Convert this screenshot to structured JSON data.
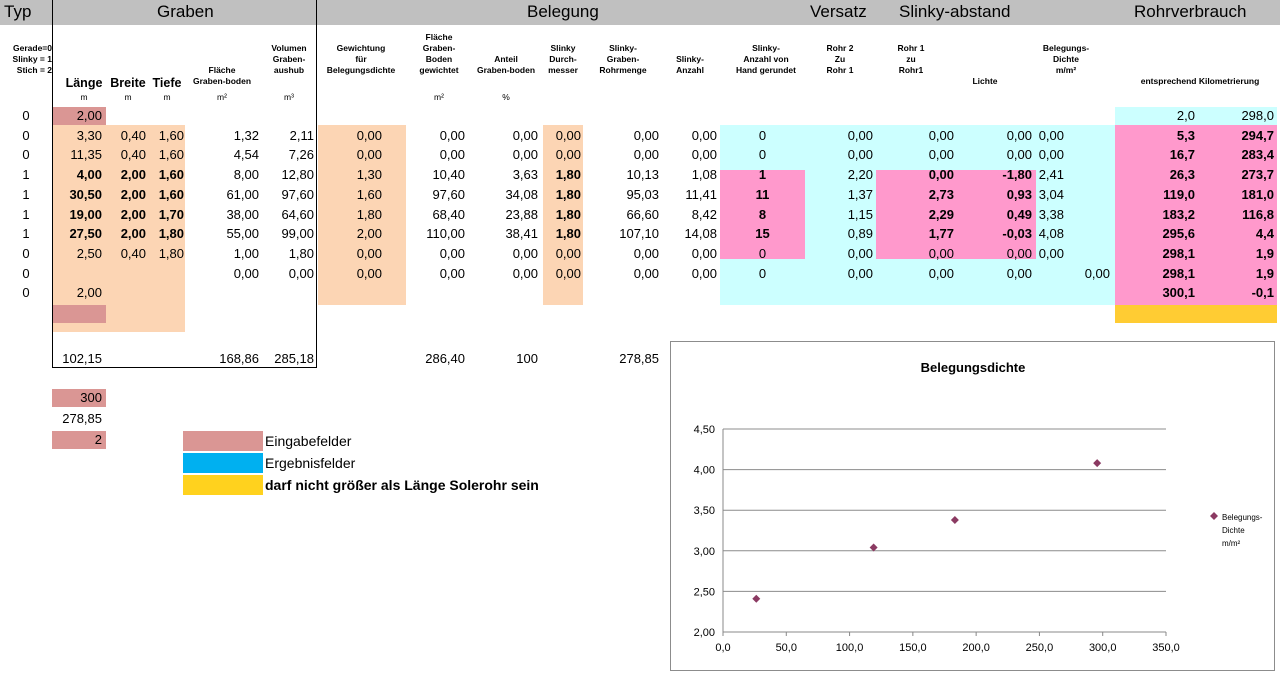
{
  "colors": {
    "header": "#c0c0c0",
    "input": "#da9694",
    "peach": "#fcd5b4",
    "cyan": "#ccffff",
    "pink": "#ff99cc",
    "yellow": "#ffcc33",
    "legend_blue": "#00b0f0",
    "legend_yellow": "#ffd21e",
    "marker": "#8b3a62"
  },
  "header": {
    "typ": "Typ",
    "graben": "Graben",
    "belegung": "Belegung",
    "versatz": "Versatz",
    "slinky_abstand": "Slinky-abstand",
    "rohrverbrauch": "Rohrverbrauch"
  },
  "typ_legend": [
    "Gerade=0",
    "Slinky = 1",
    "Stich  = 2"
  ],
  "cols": {
    "laenge": "Länge",
    "breite": "Breite",
    "tiefe": "Tiefe",
    "flaeche": [
      "Fläche",
      "Graben-boden"
    ],
    "volumen": [
      "Volumen",
      "Graben-",
      "aushub"
    ],
    "gewichtung": [
      "Gewichtung",
      "für",
      "Belegungsdichte"
    ],
    "flaeche_gew": [
      "Fläche",
      "Graben-",
      "Boden",
      "gewichtet"
    ],
    "anteil": [
      "Anteil",
      "Graben-boden"
    ],
    "slinky_d": [
      "Slinky",
      "Durch-",
      "messer"
    ],
    "slinky_menge": [
      "Slinky-",
      "Graben-",
      "Rohrmenge"
    ],
    "slinky_anzahl": [
      "Slinky-",
      "Anzahl"
    ],
    "slinky_hand": [
      "Slinky-",
      "Anzahl von",
      "Hand gerundet"
    ],
    "rohr2": [
      "Rohr 2",
      "Zu",
      "Rohr 1"
    ],
    "rohr1": [
      "Rohr 1",
      "zu",
      "Rohr1"
    ],
    "lichte": "Lichte",
    "belegdichte": [
      "Belegungs-",
      "Dichte",
      "m/m²"
    ],
    "kilometrierung": "entsprechend Kilometrierung"
  },
  "units": {
    "laenge": "m",
    "breite": "m",
    "tiefe": "m",
    "flaeche": "m²",
    "volumen": "m³",
    "flaeche_gew": "m²",
    "anteil": "%"
  },
  "rows": [
    {
      "typ": "0",
      "laenge": "2,00",
      "rv1": "2,0",
      "rv2": "298,0"
    },
    {
      "typ": "0",
      "laenge": "3,30",
      "breite": "0,40",
      "tiefe": "1,60",
      "flaeche": "1,32",
      "volumen": "2,11",
      "gew": "0,00",
      "fgew": "0,00",
      "anteil": "0,00",
      "sd": "0,00",
      "sm": "0,00",
      "sa": "0,00",
      "hand": "0",
      "r2": "0,00",
      "r1": "0,00",
      "lichte": "0,00",
      "bd": "0,00",
      "rv1": "5,3",
      "rv2": "294,7"
    },
    {
      "typ": "0",
      "laenge": "11,35",
      "breite": "0,40",
      "tiefe": "1,60",
      "flaeche": "4,54",
      "volumen": "7,26",
      "gew": "0,00",
      "fgew": "0,00",
      "anteil": "0,00",
      "sd": "0,00",
      "sm": "0,00",
      "sa": "0,00",
      "hand": "0",
      "r2": "0,00",
      "r1": "0,00",
      "lichte": "0,00",
      "bd": "0,00",
      "rv1": "16,7",
      "rv2": "283,4"
    },
    {
      "typ": "1",
      "laenge": "4,00",
      "breite": "2,00",
      "tiefe": "1,60",
      "flaeche": "8,00",
      "volumen": "12,80",
      "gew": "1,30",
      "fgew": "10,40",
      "anteil": "3,63",
      "sd": "1,80",
      "sm": "10,13",
      "sa": "1,08",
      "hand": "1",
      "r2": "2,20",
      "r1": "0,00",
      "lichte": "-1,80",
      "bd": "2,41",
      "rv1": "26,3",
      "rv2": "273,7"
    },
    {
      "typ": "1",
      "laenge": "30,50",
      "breite": "2,00",
      "tiefe": "1,60",
      "flaeche": "61,00",
      "volumen": "97,60",
      "gew": "1,60",
      "fgew": "97,60",
      "anteil": "34,08",
      "sd": "1,80",
      "sm": "95,03",
      "sa": "11,41",
      "hand": "11",
      "r2": "1,37",
      "r1": "2,73",
      "lichte": "0,93",
      "bd": "3,04",
      "rv1": "119,0",
      "rv2": "181,0"
    },
    {
      "typ": "1",
      "laenge": "19,00",
      "breite": "2,00",
      "tiefe": "1,70",
      "flaeche": "38,00",
      "volumen": "64,60",
      "gew": "1,80",
      "fgew": "68,40",
      "anteil": "23,88",
      "sd": "1,80",
      "sm": "66,60",
      "sa": "8,42",
      "hand": "8",
      "r2": "1,15",
      "r1": "2,29",
      "lichte": "0,49",
      "bd": "3,38",
      "rv1": "183,2",
      "rv2": "116,8"
    },
    {
      "typ": "1",
      "laenge": "27,50",
      "breite": "2,00",
      "tiefe": "1,80",
      "flaeche": "55,00",
      "volumen": "99,00",
      "gew": "2,00",
      "fgew": "110,00",
      "anteil": "38,41",
      "sd": "1,80",
      "sm": "107,10",
      "sa": "14,08",
      "hand": "15",
      "r2": "0,89",
      "r1": "1,77",
      "lichte": "-0,03",
      "bd": "4,08",
      "rv1": "295,6",
      "rv2": "4,4"
    },
    {
      "typ": "0",
      "laenge": "2,50",
      "breite": "0,40",
      "tiefe": "1,80",
      "flaeche": "1,00",
      "volumen": "1,80",
      "gew": "0,00",
      "fgew": "0,00",
      "anteil": "0,00",
      "sd": "0,00",
      "sm": "0,00",
      "sa": "0,00",
      "hand": "0",
      "r2": "0,00",
      "r1": "0,00",
      "lichte": "0,00",
      "bd": "0,00",
      "rv1": "298,1",
      "rv2": "1,9"
    },
    {
      "typ": "0",
      "laenge": "",
      "breite": "",
      "tiefe": "",
      "flaeche": "0,00",
      "volumen": "0,00",
      "gew": "0,00",
      "fgew": "0,00",
      "anteil": "0,00",
      "sd": "0,00",
      "sm": "0,00",
      "sa": "0,00",
      "hand": "0",
      "r2": "0,00",
      "r1": "0,00",
      "lichte": "0,00",
      "bd": "0,00",
      "rv1": "298,1",
      "rv2": "1,9"
    },
    {
      "typ": "0",
      "laenge": "2,00",
      "rv1": "300,1",
      "rv2": "-0,1"
    }
  ],
  "totals": {
    "laenge": "102,15",
    "flaeche": "168,86",
    "volumen": "285,18",
    "fgew": "286,40",
    "anteil": "100",
    "sm": "278,85"
  },
  "extra": {
    "v1": "300",
    "v2": "278,85",
    "v3": "2"
  },
  "legend": {
    "input": "Eingabefelder",
    "result": "Ergebnisfelder",
    "warning": "darf nicht größer als Länge Solerohr sein"
  },
  "chart_data": {
    "type": "scatter",
    "title": "Belegungsdichte",
    "series": [
      {
        "name": "Belegungs-Dichte m/m²",
        "x": [
          26.3,
          119.0,
          183.2,
          295.6
        ],
        "y": [
          2.41,
          3.04,
          3.38,
          4.08
        ]
      }
    ],
    "x_ticks": [
      "0,0",
      "50,0",
      "100,0",
      "150,0",
      "200,0",
      "250,0",
      "300,0",
      "350,0"
    ],
    "y_ticks": [
      "2,00",
      "2,50",
      "3,00",
      "3,50",
      "4,00",
      "4,50"
    ],
    "xlim": [
      0,
      350
    ],
    "ylim": [
      2,
      4.5
    ],
    "legend_lines": [
      "Belegungs-",
      "Dichte",
      "m/m²"
    ],
    "legend_position": "right"
  }
}
